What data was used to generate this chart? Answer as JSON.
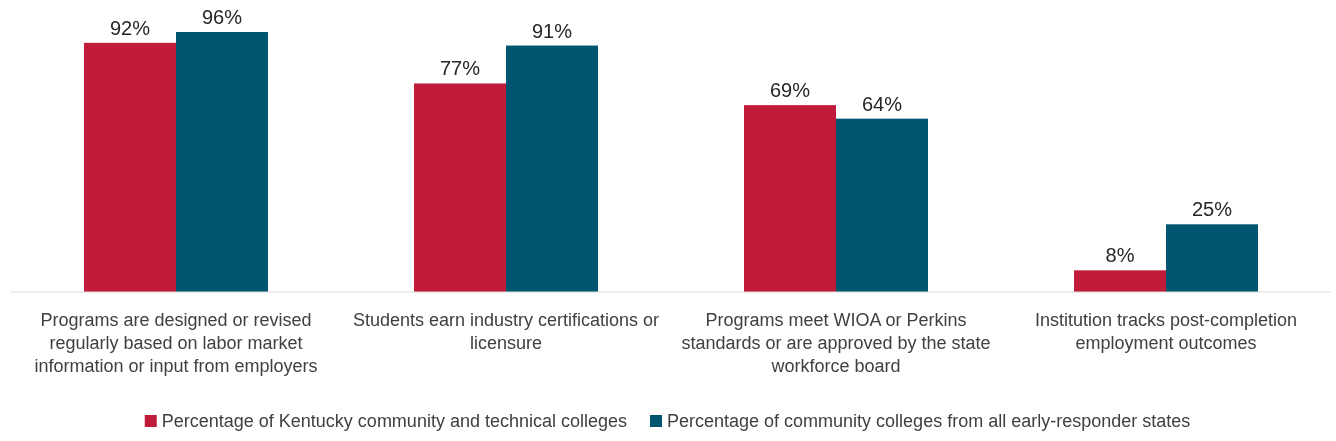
{
  "chart_data": {
    "type": "bar",
    "categories": [
      "Programs are designed or revised regularly based on labor market information or input from employers",
      "Students earn industry certifications or licensure",
      "Programs meet WIOA or Perkins standards or are approved by the state workforce board",
      "Institution tracks post-completion employment outcomes"
    ],
    "series": [
      {
        "name": "Percentage of Kentucky community and technical colleges",
        "color": "#c01c3a",
        "values": [
          92,
          77,
          69,
          8
        ],
        "value_labels": [
          "92%",
          "77%",
          "69%",
          "8%"
        ]
      },
      {
        "name": "Percentage of community colleges from all early-responder states",
        "color": "#005670",
        "values": [
          96,
          91,
          64,
          25
        ],
        "value_labels": [
          "96%",
          "91%",
          "64%",
          "25%"
        ]
      }
    ],
    "legend": "bottom"
  }
}
